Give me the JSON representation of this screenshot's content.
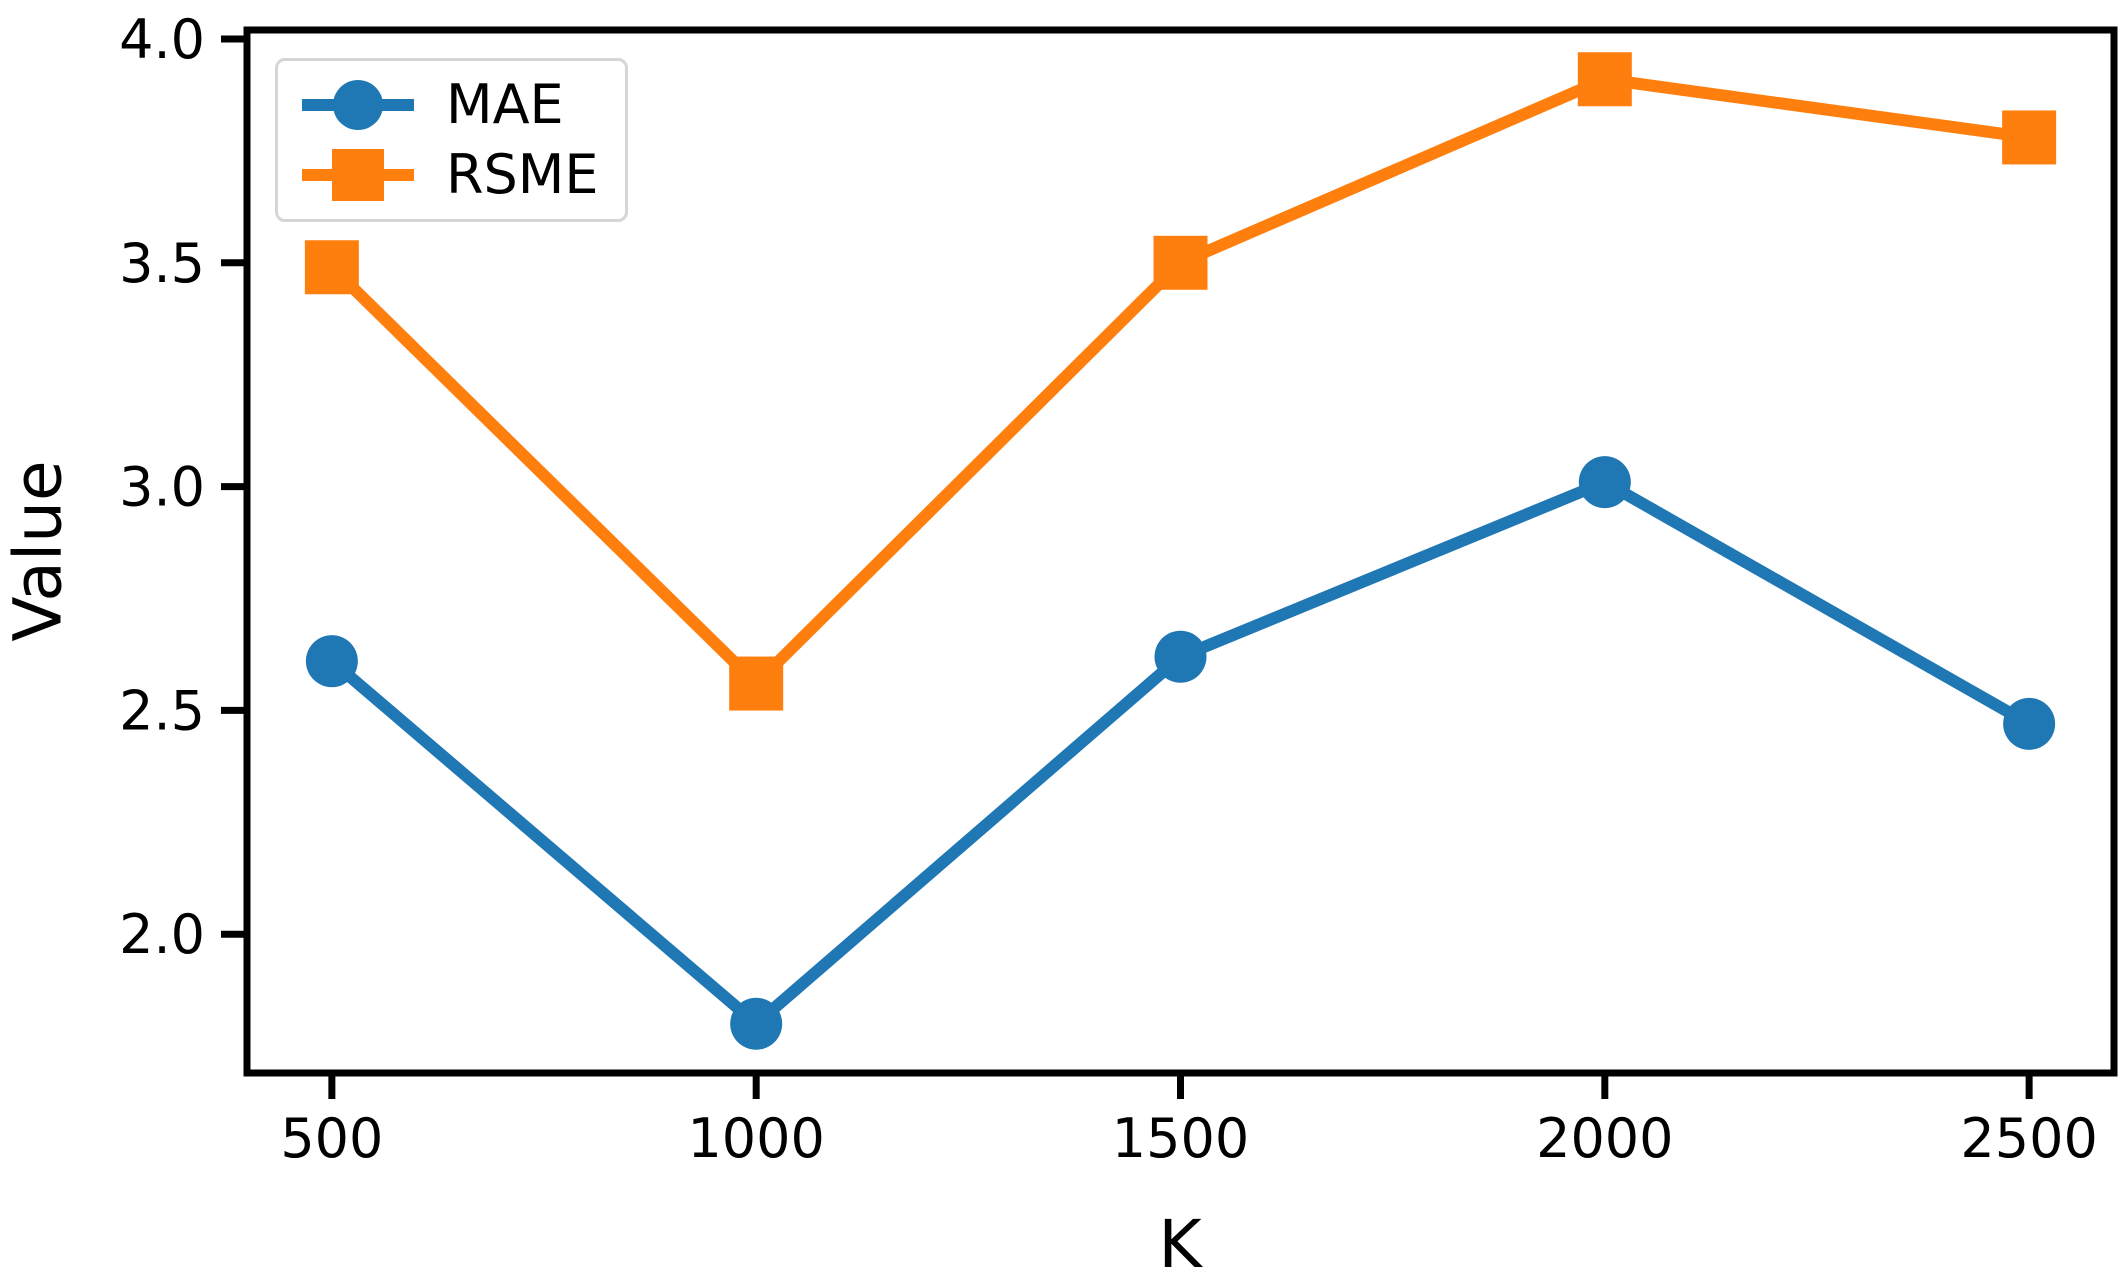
{
  "chart_data": {
    "type": "line",
    "title": "",
    "xlabel": "K",
    "ylabel": "Value",
    "x": [
      500,
      1000,
      1500,
      2000,
      2500
    ],
    "series": [
      {
        "name": "MAE",
        "marker": "circle",
        "color": "#1f77b4",
        "values": [
          2.61,
          1.8,
          2.62,
          3.01,
          2.47
        ]
      },
      {
        "name": "RSME",
        "marker": "square",
        "color": "#ff7f0e",
        "values": [
          3.49,
          2.56,
          3.5,
          3.91,
          3.78
        ]
      }
    ],
    "xticks": [
      "500",
      "1000",
      "1500",
      "2000",
      "2500"
    ],
    "xtick_values": [
      500,
      1000,
      1500,
      2000,
      2500
    ],
    "yticks": [
      "2.0",
      "2.5",
      "3.0",
      "3.5",
      "4.0"
    ],
    "ytick_values": [
      2.0,
      2.5,
      3.0,
      3.5,
      4.0
    ],
    "xlim": [
      400,
      2600
    ],
    "ylim": [
      1.69,
      4.02
    ],
    "grid": false,
    "legend_position": "upper left",
    "background_color": "#ffffff",
    "axis_color": "#000000"
  }
}
